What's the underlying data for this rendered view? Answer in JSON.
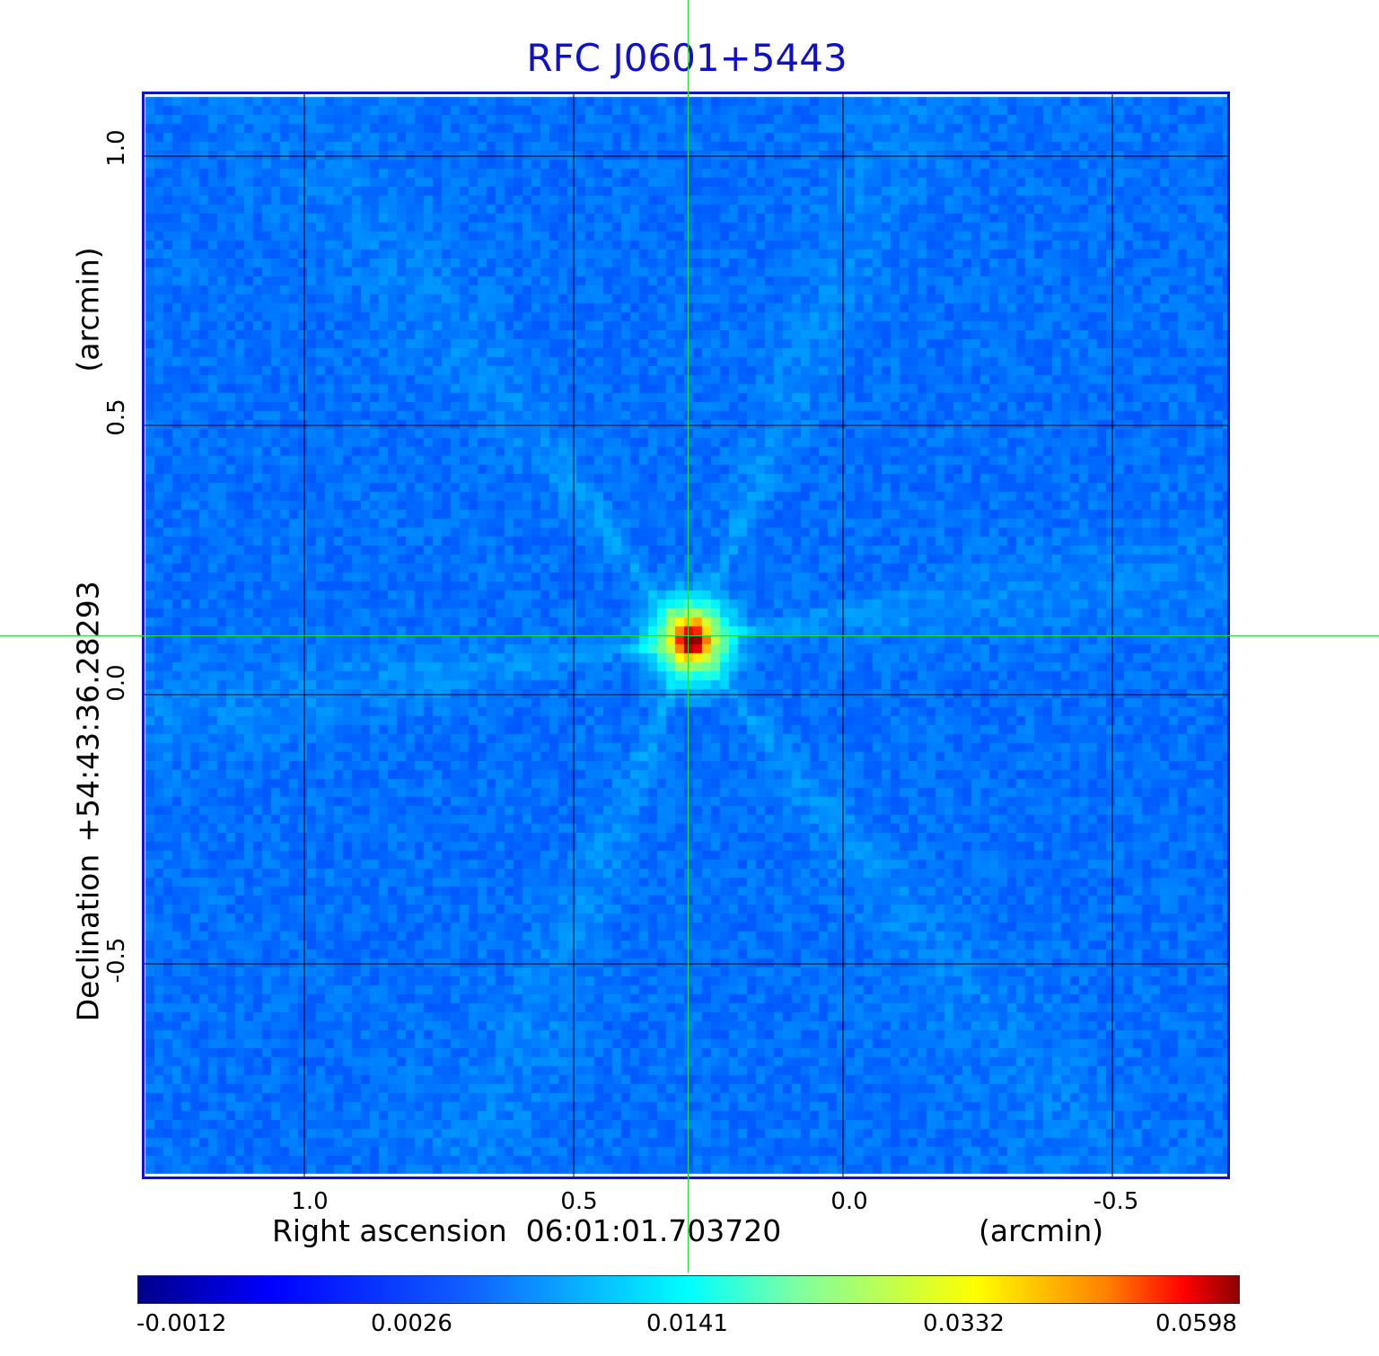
{
  "title": "RFC J0601+5443",
  "x_axis": {
    "label": "Right ascension  06:01:01.703720",
    "unit": "(arcmin)",
    "ticks": [
      "1.0",
      "0.5",
      "0.0",
      "-0.5"
    ]
  },
  "y_axis": {
    "label_prefix": "Declination",
    "center": "+54:43:36.28293",
    "unit": "(arcmin)",
    "ticks": [
      "1.0",
      "0.5",
      "0.0",
      "-0.5"
    ]
  },
  "colorbar": {
    "colormap": "jet",
    "ticks": [
      "-0.0012",
      "0.0026",
      "0.0141",
      "0.0332",
      "0.0598"
    ]
  },
  "colors": {
    "title": "#1010cc",
    "frame": "#0a14d2",
    "crosshair": "#22dd33",
    "grid": "#000000"
  }
}
